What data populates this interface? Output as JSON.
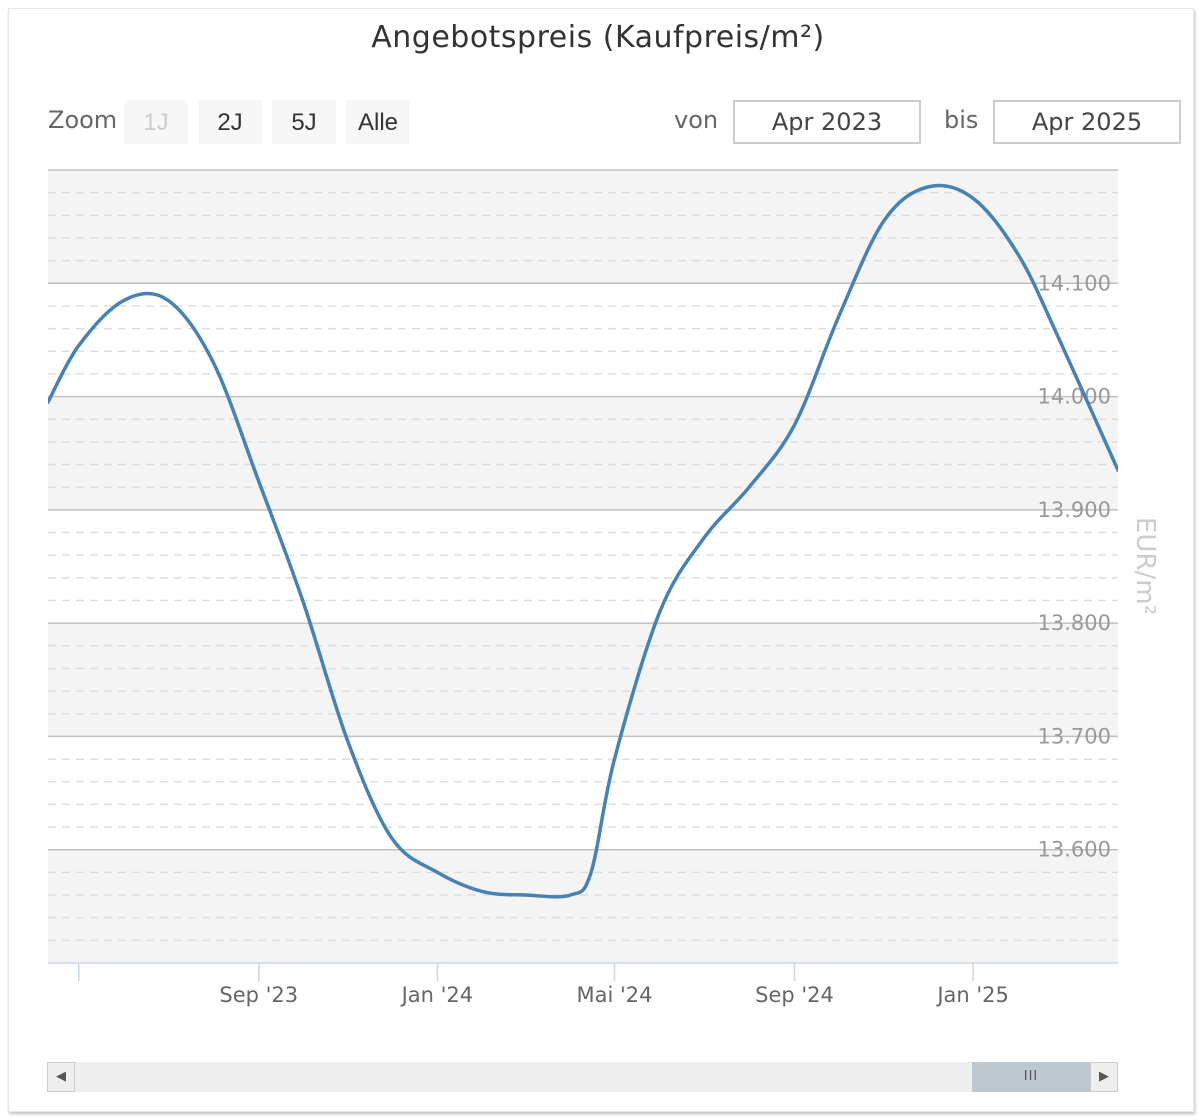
{
  "chart": {
    "title": "Angebotspreis (Kaufpreis/m²)",
    "zoom_label": "Zoom",
    "zoom_buttons": [
      "1J",
      "2J",
      "5J",
      "Alle"
    ],
    "range": {
      "from_label": "von",
      "from_value": "Apr 2023",
      "to_label": "bis",
      "to_value": "Apr 2025"
    },
    "colors": {
      "line": "#4682b4",
      "band": "#f4f4f4",
      "grid_major": "#c0c0c0",
      "grid_minor": "#dddddd"
    }
  },
  "chart_data": {
    "type": "line",
    "title": "Angebotspreis (Kaufpreis/m²)",
    "ylabel": "EUR/m²",
    "xlabel": "",
    "x_tick_labels": [
      "Sep '23",
      "Jan '24",
      "Mai '24",
      "Sep '24",
      "Jan '25"
    ],
    "y_tick_labels": [
      "13.600",
      "13.700",
      "13.800",
      "13.900",
      "14.000",
      "14.100"
    ],
    "y_ticks": [
      13600,
      13700,
      13800,
      13900,
      14000,
      14100
    ],
    "ylim": [
      13500,
      14200
    ],
    "xlim": [
      "2023-04-10",
      "2025-04-10"
    ],
    "grid": true,
    "legend": "none",
    "series": [
      {
        "x": [
          "2023-04-10",
          "2023-05-01",
          "2023-06-01",
          "2023-07-01",
          "2023-08-01",
          "2023-09-01",
          "2023-10-01",
          "2023-11-01",
          "2023-12-01",
          "2024-01-01",
          "2024-02-01",
          "2024-03-01",
          "2024-04-01",
          "2024-04-15",
          "2024-05-01",
          "2024-06-01",
          "2024-07-01",
          "2024-08-01",
          "2024-09-01",
          "2024-10-01",
          "2024-11-01",
          "2024-12-01",
          "2025-01-01",
          "2025-02-01",
          "2025-03-01",
          "2025-04-10"
        ],
        "values": [
          13995,
          14045,
          14085,
          14085,
          14030,
          13925,
          13820,
          13695,
          13610,
          13580,
          13563,
          13560,
          13560,
          13580,
          13680,
          13810,
          13875,
          13920,
          13975,
          14070,
          14155,
          14185,
          14175,
          14125,
          14050,
          13935
        ]
      }
    ]
  }
}
